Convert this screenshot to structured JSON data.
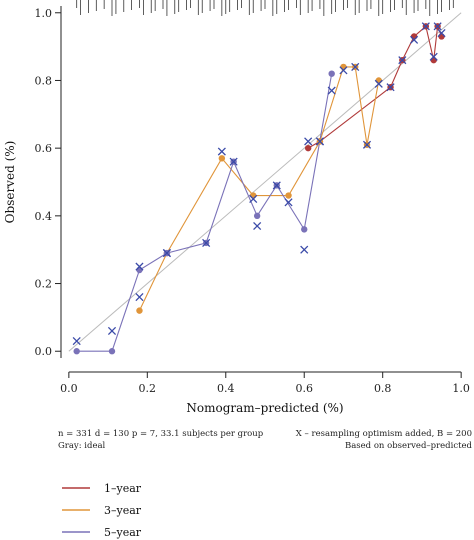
{
  "chart_data": {
    "type": "line",
    "xlabel": "Nomogram–predicted (%)",
    "ylabel": "Observed (%)",
    "xlim": [
      -0.02,
      1.02
    ],
    "ylim": [
      -0.02,
      1.02
    ],
    "xticks": [
      "0.0",
      "0.2",
      "0.4",
      "0.6",
      "0.8",
      "1.0"
    ],
    "yticks": [
      "0.0",
      "0.2",
      "0.4",
      "0.6",
      "0.8",
      "1.0"
    ],
    "xtick_values": [
      0,
      0.2,
      0.4,
      0.6,
      0.8,
      1.0
    ],
    "ytick_values": [
      0,
      0.2,
      0.4,
      0.6,
      0.8,
      1.0
    ],
    "ideal_line": "gray diagonal",
    "series": [
      {
        "name": "1–year",
        "color": "#b03a3a",
        "points": [
          [
            0.61,
            0.6
          ],
          [
            0.64,
            0.62
          ],
          [
            0.82,
            0.78
          ],
          [
            0.85,
            0.86
          ],
          [
            0.88,
            0.93
          ],
          [
            0.91,
            0.96
          ],
          [
            0.93,
            0.86
          ],
          [
            0.94,
            0.96
          ],
          [
            0.95,
            0.93
          ]
        ],
        "corrected": [
          [
            0.61,
            0.62
          ],
          [
            0.64,
            0.62
          ],
          [
            0.82,
            0.78
          ],
          [
            0.85,
            0.86
          ],
          [
            0.88,
            0.92
          ],
          [
            0.91,
            0.96
          ],
          [
            0.93,
            0.87
          ],
          [
            0.94,
            0.96
          ],
          [
            0.95,
            0.94
          ]
        ]
      },
      {
        "name": "3–year",
        "color": "#e0953a",
        "points": [
          [
            0.18,
            0.12
          ],
          [
            0.25,
            0.29
          ],
          [
            0.39,
            0.57
          ],
          [
            0.47,
            0.46
          ],
          [
            0.56,
            0.46
          ],
          [
            0.64,
            0.62
          ],
          [
            0.7,
            0.84
          ],
          [
            0.73,
            0.84
          ],
          [
            0.76,
            0.61
          ],
          [
            0.79,
            0.8
          ]
        ],
        "corrected": [
          [
            0.18,
            0.16
          ],
          [
            0.25,
            0.29
          ],
          [
            0.39,
            0.59
          ],
          [
            0.47,
            0.45
          ],
          [
            0.56,
            0.44
          ],
          [
            0.64,
            0.62
          ],
          [
            0.7,
            0.83
          ],
          [
            0.73,
            0.84
          ],
          [
            0.76,
            0.61
          ],
          [
            0.79,
            0.79
          ]
        ]
      },
      {
        "name": "5–year",
        "color": "#7a72b8",
        "points": [
          [
            0.02,
            0.0
          ],
          [
            0.11,
            0.0
          ],
          [
            0.18,
            0.24
          ],
          [
            0.25,
            0.29
          ],
          [
            0.35,
            0.32
          ],
          [
            0.42,
            0.56
          ],
          [
            0.48,
            0.4
          ],
          [
            0.53,
            0.49
          ],
          [
            0.6,
            0.36
          ],
          [
            0.67,
            0.82
          ]
        ],
        "corrected": [
          [
            0.02,
            0.03
          ],
          [
            0.11,
            0.06
          ],
          [
            0.18,
            0.25
          ],
          [
            0.25,
            0.29
          ],
          [
            0.35,
            0.32
          ],
          [
            0.42,
            0.56
          ],
          [
            0.48,
            0.37
          ],
          [
            0.53,
            0.49
          ],
          [
            0.6,
            0.3
          ],
          [
            0.67,
            0.77
          ]
        ]
      }
    ],
    "rug_positions": [
      0.02,
      0.03,
      0.05,
      0.07,
      0.09,
      0.11,
      0.12,
      0.14,
      0.16,
      0.18,
      0.19,
      0.21,
      0.22,
      0.24,
      0.25,
      0.27,
      0.28,
      0.3,
      0.31,
      0.33,
      0.34,
      0.36,
      0.37,
      0.39,
      0.4,
      0.41,
      0.43,
      0.44,
      0.46,
      0.47,
      0.49,
      0.5,
      0.52,
      0.53,
      0.55,
      0.56,
      0.58,
      0.59,
      0.61,
      0.62,
      0.64,
      0.65,
      0.67,
      0.68,
      0.7,
      0.71,
      0.73,
      0.74,
      0.76,
      0.77,
      0.79,
      0.8,
      0.82,
      0.83,
      0.85,
      0.86,
      0.88,
      0.89,
      0.91,
      0.92,
      0.94,
      0.95,
      0.97,
      0.98
    ],
    "notes": {
      "left_line1": "n = 331 d = 130 p = 7, 33.1 subjects per group",
      "left_line2": "Gray: ideal",
      "right_line1": "X – resampling optimism added, B = 200",
      "right_line2": "Based on observed–predicted"
    },
    "legend": [
      "1–year",
      "3–year",
      "5–year"
    ],
    "legend_placement": "bottom-left",
    "colors": {
      "axis": "#222222",
      "ideal": "#bbbbbb",
      "cross": "#3a4aa8"
    }
  }
}
